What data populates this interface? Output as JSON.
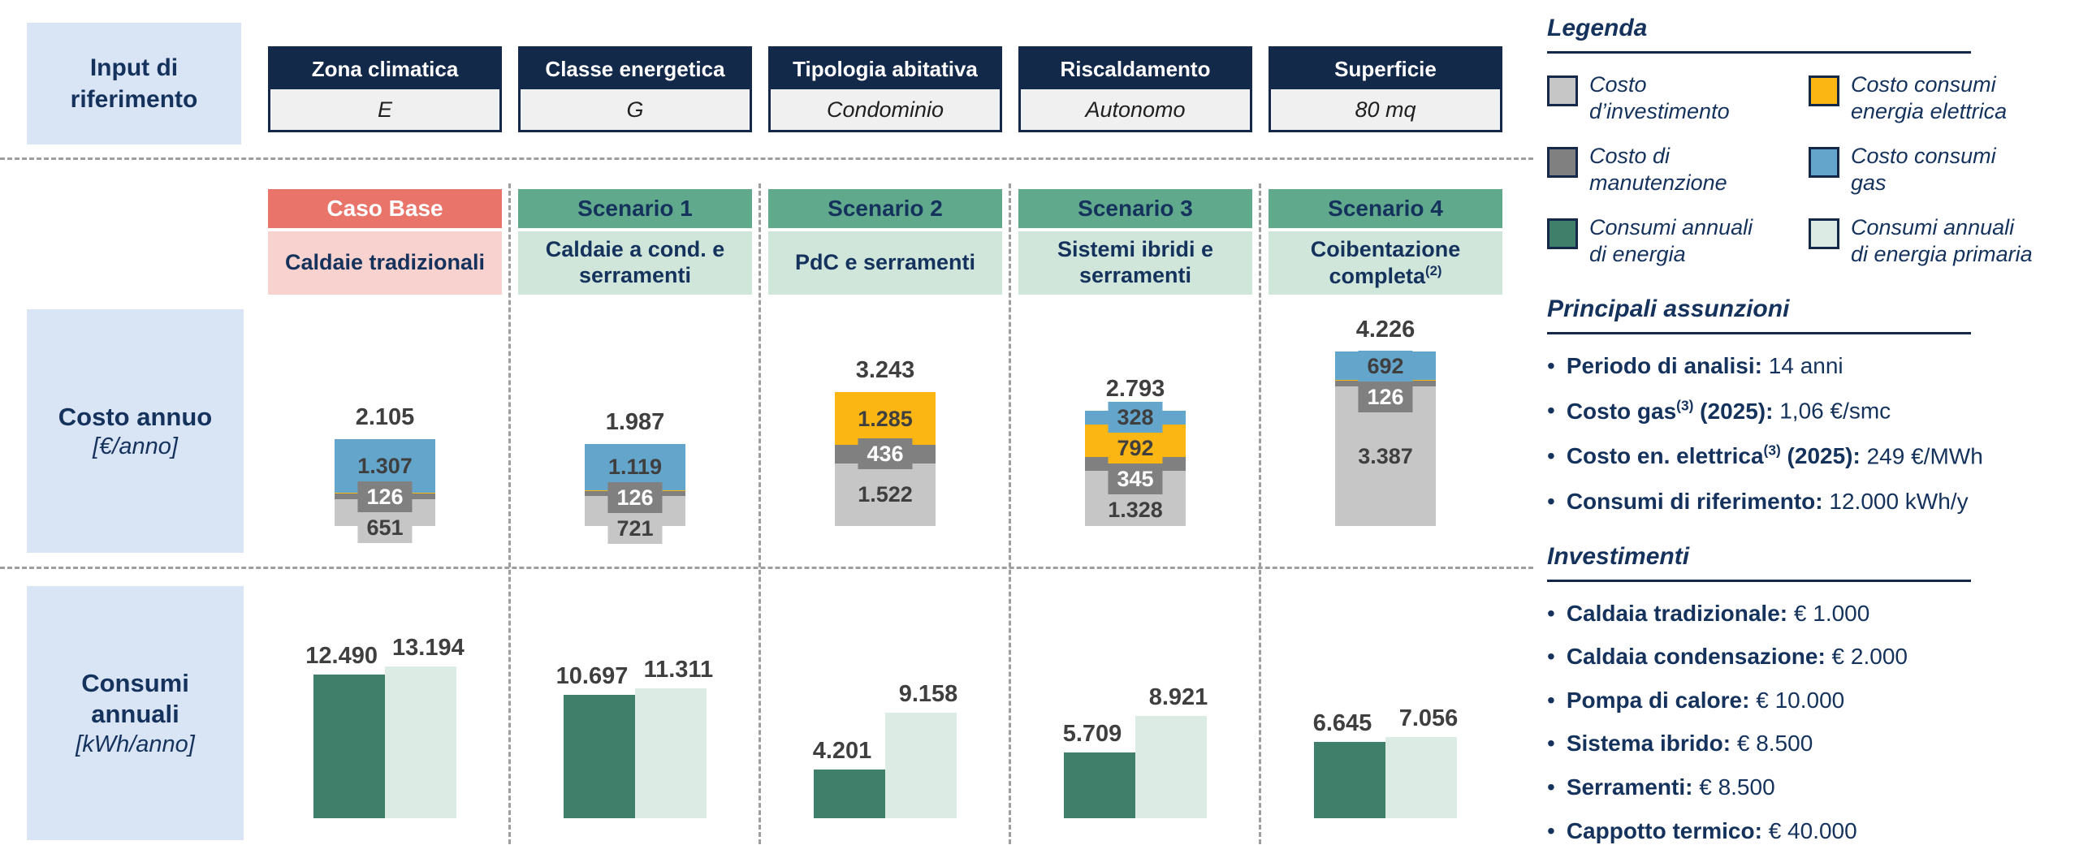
{
  "colors": {
    "navy": "#14294a",
    "text_navy": "#14325c",
    "light_blue_box": "#d9e4f5",
    "table_value_bg": "#f0f0f0",
    "caso_base_red": "#e8746a",
    "caso_base_pink": "#f8d2ce",
    "scenario_green": "#61a98c",
    "scenario_light_green": "#d0e6db",
    "gas_blue": "#64a5cc",
    "electricity_yellow": "#fcb614",
    "maintenance_gray": "#808080",
    "investment_gray": "#c6c6c6",
    "energy_dark_green": "#40806b",
    "primary_energy_mint": "#dcebe3",
    "value_label_gray": "#3f3f3f",
    "dash_gray": "#9e9e9e"
  },
  "input_panel": {
    "label": "Input di riferimento",
    "columns": [
      {
        "header": "Zona climatica",
        "value": "E"
      },
      {
        "header": "Classe energetica",
        "value": "G"
      },
      {
        "header": "Tipologia abitativa",
        "value": "Condominio"
      },
      {
        "header": "Riscaldamento",
        "value": "Autonomo"
      },
      {
        "header": "Superficie",
        "value": "80 mq"
      }
    ]
  },
  "scenarios": [
    {
      "title": "Caso Base",
      "subtitle": "Caldaie tradizionali",
      "subtitle_sup": "",
      "theme": "base"
    },
    {
      "title": "Scenario 1",
      "subtitle": "Caldaie a cond. e serramenti",
      "subtitle_sup": "",
      "theme": "green"
    },
    {
      "title": "Scenario 2",
      "subtitle": "PdC e serramenti",
      "subtitle_sup": "",
      "theme": "green"
    },
    {
      "title": "Scenario 3",
      "subtitle": "Sistemi ibridi e serramenti",
      "subtitle_sup": "",
      "theme": "green"
    },
    {
      "title": "Scenario 4",
      "subtitle": "Coibentazione completa",
      "subtitle_sup": "(2)",
      "theme": "green"
    }
  ],
  "row_labels": {
    "costo": {
      "title": "Costo annuo",
      "unit": "[€/anno]"
    },
    "consumi": {
      "title": "Consumi annuali",
      "unit": "[kWh/anno]"
    }
  },
  "chart_data": [
    {
      "type": "bar",
      "variant": "stacked",
      "title": "Costo annuo",
      "unit": "€/anno",
      "categories": [
        "Caso Base",
        "Scenario 1",
        "Scenario 2",
        "Scenario 3",
        "Scenario 4"
      ],
      "series": [
        {
          "key": "gas",
          "name": "Costo consumi gas",
          "color": "#64a5cc",
          "values": [
            1307,
            1119,
            0,
            328,
            692
          ],
          "labels": [
            "1.307",
            "1.119",
            "",
            "328",
            "692"
          ]
        },
        {
          "key": "elec",
          "name": "Costo consumi energia elettrica",
          "color": "#fcb614",
          "values": [
            21,
            21,
            1285,
            792,
            21
          ],
          "labels": [
            "",
            "",
            "1.285",
            "792",
            ""
          ]
        },
        {
          "key": "maint",
          "name": "Costo di manutenzione",
          "color": "#808080",
          "values": [
            126,
            126,
            436,
            345,
            126
          ],
          "labels": [
            "126",
            "126",
            "436",
            "345",
            "126"
          ]
        },
        {
          "key": "invest",
          "name": "Costo d’investimento",
          "color": "#c6c6c6",
          "values": [
            651,
            721,
            1522,
            1328,
            3387
          ],
          "labels": [
            "651",
            "721",
            "1.522",
            "1.328",
            "3.387"
          ]
        }
      ],
      "totals": [
        2105,
        1987,
        3243,
        2793,
        4226
      ],
      "totals_labels": [
        "2.105",
        "1.987",
        "3.243",
        "2.793",
        "4.226"
      ],
      "series_order_note": "series listed top-to-bottom as drawn in each stacked bar"
    },
    {
      "type": "bar",
      "variant": "grouped",
      "title": "Consumi annuali",
      "unit": "kWh/anno",
      "categories": [
        "Caso Base",
        "Scenario 1",
        "Scenario 2",
        "Scenario 3",
        "Scenario 4"
      ],
      "series": [
        {
          "key": "energy",
          "name": "Consumi annuali di energia",
          "color": "#40806b",
          "values": [
            12490,
            10697,
            4201,
            5709,
            6645
          ],
          "labels": [
            "12.490",
            "10.697",
            "4.201",
            "5.709",
            "6.645"
          ]
        },
        {
          "key": "primary",
          "name": "Consumi annuali di energia primaria",
          "color": "#dcebe3",
          "values": [
            13194,
            11311,
            9158,
            8921,
            7056
          ],
          "labels": [
            "13.194",
            "11.311",
            "9.158",
            "8.921",
            "7.056"
          ]
        }
      ]
    }
  ],
  "legend": {
    "title": "Legenda",
    "items": [
      {
        "key": "invest",
        "color": "#c6c6c6",
        "lines": [
          "Costo",
          "d’investimento"
        ]
      },
      {
        "key": "elec",
        "color": "#fcb614",
        "lines": [
          "Costo consumi",
          "energia elettrica"
        ]
      },
      {
        "key": "maint",
        "color": "#808080",
        "lines": [
          "Costo di",
          "manutenzione"
        ]
      },
      {
        "key": "gas",
        "color": "#64a5cc",
        "lines": [
          "Costo consumi",
          "gas"
        ]
      },
      {
        "key": "energy",
        "color": "#40806b",
        "lines": [
          "Consumi annuali",
          "di energia"
        ]
      },
      {
        "key": "primary",
        "color": "#dcebe3",
        "lines": [
          "Consumi annuali",
          "di energia primaria"
        ]
      }
    ]
  },
  "assumptions": {
    "title": "Principali assunzioni",
    "items": [
      {
        "prefix": "Periodo di analisi:",
        "sup": "",
        "suffix": "",
        "value": "14 anni"
      },
      {
        "prefix": "Costo gas",
        "sup": "(3)",
        "suffix": " (2025):",
        "value": "1,06 €/smc"
      },
      {
        "prefix": "Costo en. elettrica",
        "sup": "(3)",
        "suffix": " (2025):",
        "value": "249 €/MWh"
      },
      {
        "prefix": "Consumi di riferimento:",
        "sup": "",
        "suffix": "",
        "value": "12.000 kWh/y"
      }
    ]
  },
  "investments": {
    "title": "Investimenti",
    "items": [
      {
        "label": "Caldaia tradizionale:",
        "value": "€ 1.000"
      },
      {
        "label": "Caldaia condensazione:",
        "value": "€ 2.000"
      },
      {
        "label": "Pompa di calore:",
        "value": "€ 10.000"
      },
      {
        "label": "Sistema ibrido:",
        "value": "€ 8.500"
      },
      {
        "label": "Serramenti:",
        "value": "€ 8.500"
      },
      {
        "label": "Cappotto termico:",
        "value": "€ 40.000"
      }
    ]
  }
}
